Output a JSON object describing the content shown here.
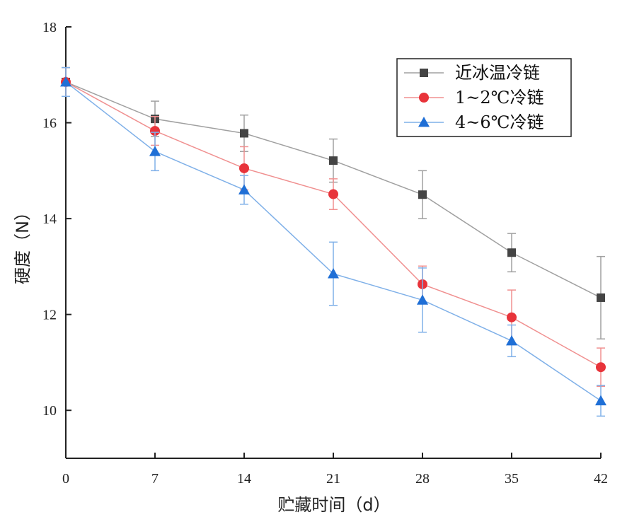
{
  "chart_data": {
    "type": "line",
    "xlabel": "贮藏时间（d）",
    "ylabel": "硬度（N）",
    "x": [
      0,
      7,
      14,
      21,
      28,
      35,
      42
    ],
    "xticks": [
      "0",
      "7",
      "14",
      "21",
      "28",
      "35",
      "42"
    ],
    "xlim": [
      0,
      42
    ],
    "ylim": [
      9,
      18
    ],
    "yticks": [
      "10",
      "12",
      "14",
      "16",
      "18"
    ],
    "legend": "top-right",
    "grid": false,
    "series": [
      {
        "name": "近冰温冷链",
        "color": "#444444",
        "line_color": "#a0a0a0",
        "marker": "square",
        "values": [
          16.85,
          16.08,
          15.78,
          15.21,
          14.5,
          13.29,
          12.35
        ],
        "errors": [
          0.3,
          0.37,
          0.38,
          0.45,
          0.5,
          0.4,
          0.86
        ]
      },
      {
        "name": "1~2℃冷链",
        "color": "#e8333a",
        "line_color": "#f09090",
        "marker": "circle",
        "values": [
          16.85,
          15.83,
          15.05,
          14.51,
          12.63,
          11.94,
          10.9
        ],
        "errors": [
          0.3,
          0.3,
          0.45,
          0.32,
          0.38,
          0.57,
          0.4
        ]
      },
      {
        "name": "4~6℃冷链",
        "color": "#1f6fd6",
        "line_color": "#7fb0e8",
        "marker": "triangle",
        "values": [
          16.85,
          15.4,
          14.6,
          12.85,
          12.3,
          11.45,
          10.2
        ],
        "errors": [
          0.3,
          0.4,
          0.3,
          0.66,
          0.67,
          0.33,
          0.32
        ]
      }
    ]
  }
}
